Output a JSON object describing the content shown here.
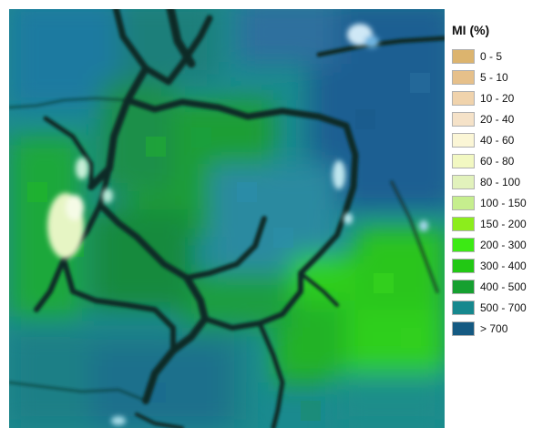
{
  "legend": {
    "title": "MI (%)",
    "items": [
      {
        "label": "0 - 5",
        "color": "#dcb46e"
      },
      {
        "label": "5 - 10",
        "color": "#e6c08a"
      },
      {
        "label": "10 - 20",
        "color": "#f0d3ac"
      },
      {
        "label": "20 - 40",
        "color": "#f5e2c8"
      },
      {
        "label": "40 - 60",
        "color": "#fbf6d6"
      },
      {
        "label": "60 - 80",
        "color": "#f2f8c2"
      },
      {
        "label": "80 - 100",
        "color": "#e2f2bc"
      },
      {
        "label": "100 - 150",
        "color": "#c6ee8e"
      },
      {
        "label": "150 - 200",
        "color": "#8ced1c"
      },
      {
        "label": "200 - 300",
        "color": "#3cea14"
      },
      {
        "label": "300 - 400",
        "color": "#22c814"
      },
      {
        "label": "400 - 500",
        "color": "#16a030"
      },
      {
        "label": "500 - 700",
        "color": "#16888e"
      },
      {
        "label": "> 700",
        "color": "#155a82"
      }
    ]
  },
  "map": {
    "colors": {
      "deep_blue": "#155a82",
      "teal": "#16888e",
      "dark_green": "#16a030",
      "green": "#22c814",
      "bright_green": "#3cea14",
      "pale": "#e2f2bc",
      "boundary": "#0b2a24"
    }
  }
}
